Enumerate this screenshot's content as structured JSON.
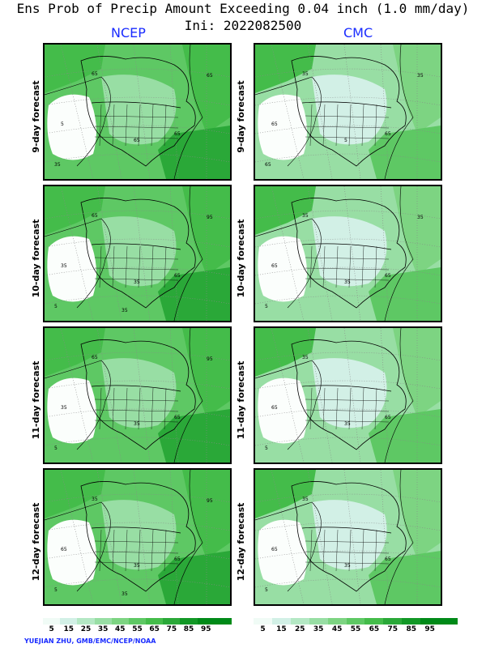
{
  "header": {
    "title": "Ens Prob of Precip Amount Exceeding 0.04 inch (1.0 mm/day)",
    "init": "Ini: 2022082500"
  },
  "models": [
    "NCEP",
    "CMC"
  ],
  "rows": [
    "9-day forecast",
    "10-day forecast",
    "11-day forecast",
    "12-day forecast"
  ],
  "colorbar": {
    "labels": [
      "5",
      "15",
      "25",
      "35",
      "45",
      "55",
      "65",
      "75",
      "85",
      "95"
    ],
    "colors": [
      "#f0fbf6",
      "#d2f0e6",
      "#b4e8c4",
      "#98dea4",
      "#7dd482",
      "#5ec864",
      "#44bc4a",
      "#2aa838",
      "#129826",
      "#008a18"
    ]
  },
  "contour_labels": {
    "ncep_9": [
      "65",
      "5",
      "35",
      "65",
      "65",
      "65"
    ],
    "cmc_9": [
      "35",
      "65",
      "65",
      "5",
      "65",
      "35"
    ],
    "ncep_10": [
      "65",
      "35",
      "5",
      "35",
      "65",
      "95",
      "35"
    ],
    "cmc_10": [
      "35",
      "65",
      "5",
      "35",
      "65",
      "35"
    ],
    "ncep_11": [
      "65",
      "35",
      "5",
      "35",
      "65",
      "95"
    ],
    "cmc_11": [
      "35",
      "65",
      "5",
      "35",
      "65"
    ],
    "ncep_12": [
      "35",
      "65",
      "5",
      "35",
      "65",
      "95",
      "35"
    ],
    "cmc_12": [
      "35",
      "65",
      "5",
      "35",
      "65"
    ]
  },
  "credit": "YUEJIAN ZHU, GMB/EMC/NCEP/NOAA"
}
